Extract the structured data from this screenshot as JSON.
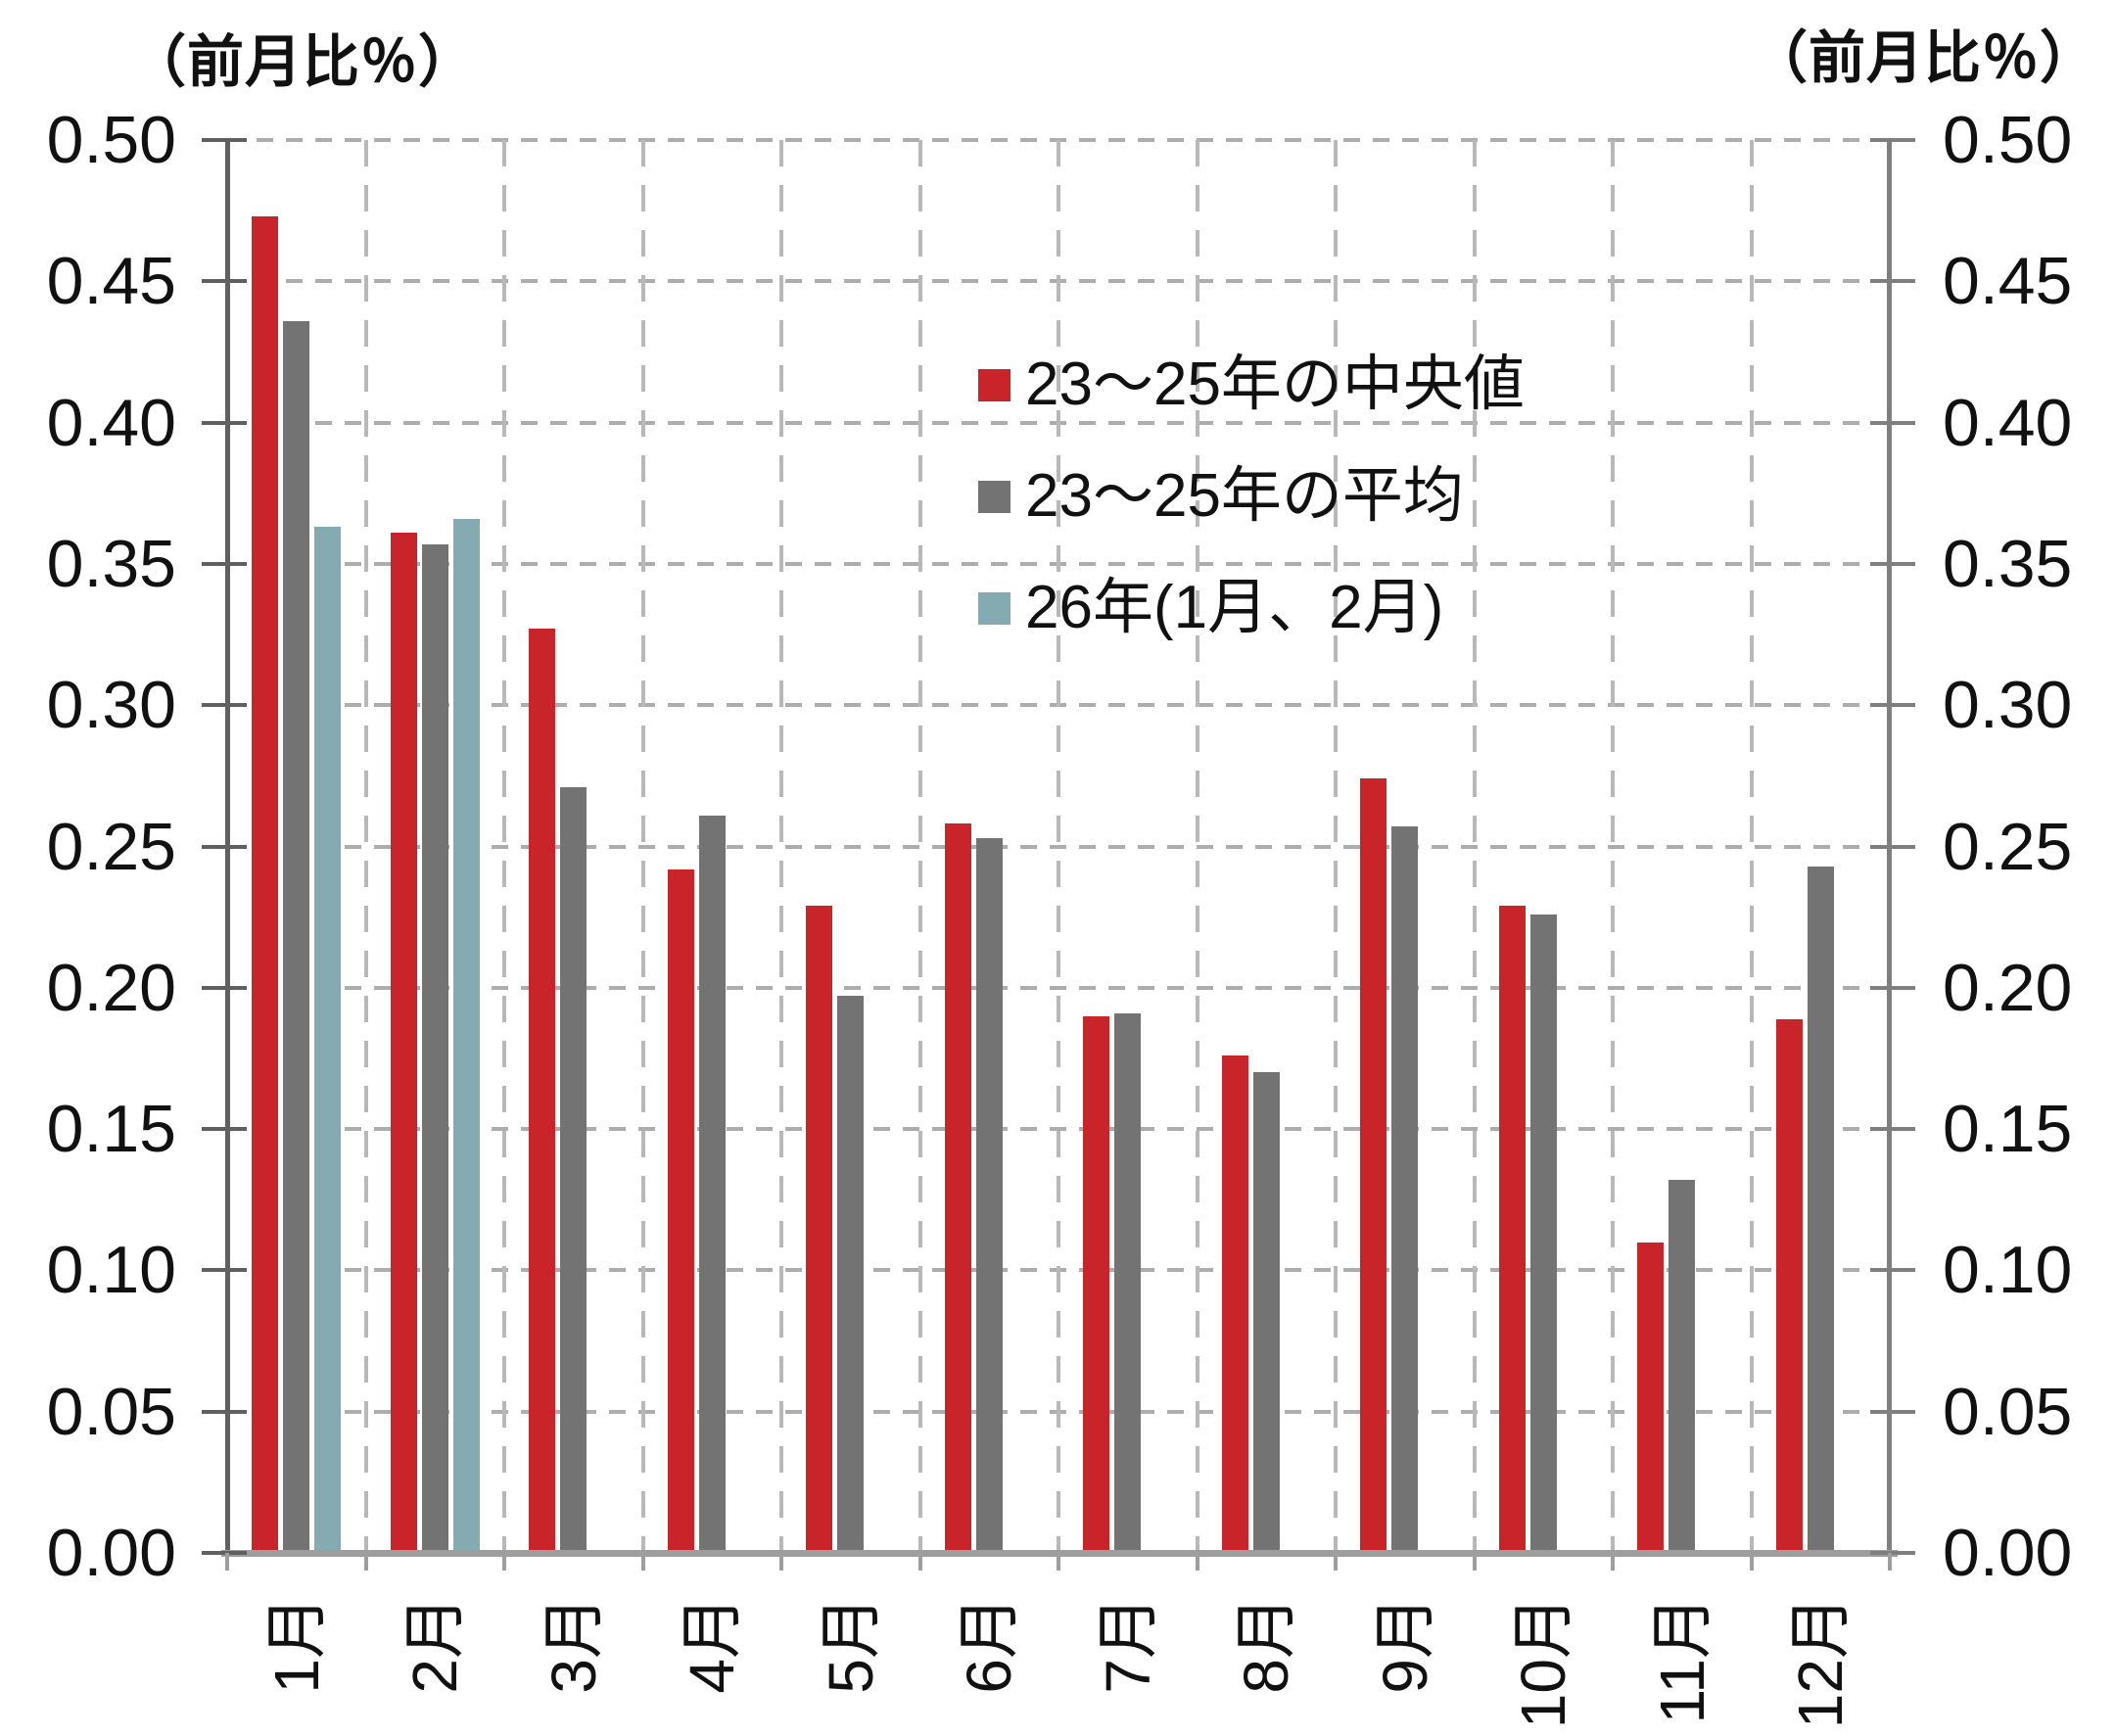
{
  "chart_data": {
    "type": "bar",
    "title": "",
    "ylabel_left": "（前月比％）",
    "ylabel_right": "（前月比％）",
    "categories": [
      "1月",
      "2月",
      "3月",
      "4月",
      "5月",
      "6月",
      "7月",
      "8月",
      "9月",
      "10月",
      "11月",
      "12月"
    ],
    "series": [
      {
        "name": "23～25年の中央値",
        "color": "#C9242A",
        "values": [
          0.473,
          0.361,
          0.327,
          0.242,
          0.229,
          0.258,
          0.19,
          0.176,
          0.274,
          0.229,
          0.11,
          0.189
        ]
      },
      {
        "name": "23～25年の平均",
        "color": "#737373",
        "values": [
          0.436,
          0.357,
          0.271,
          0.261,
          0.197,
          0.253,
          0.191,
          0.17,
          0.257,
          0.226,
          0.132,
          0.243
        ]
      },
      {
        "name": "26年(1月、2月)",
        "color": "#84ABB1",
        "values": [
          0.363,
          0.366,
          null,
          null,
          null,
          null,
          null,
          null,
          null,
          null,
          null,
          null
        ]
      }
    ],
    "ylim": [
      0,
      0.5
    ],
    "y_tick_step": 0.05,
    "y_ticks": [
      "0.00",
      "0.05",
      "0.10",
      "0.15",
      "0.20",
      "0.25",
      "0.30",
      "0.35",
      "0.40",
      "0.45",
      "0.50"
    ],
    "grid": true,
    "legend_position": "inside-upper-center-right"
  }
}
